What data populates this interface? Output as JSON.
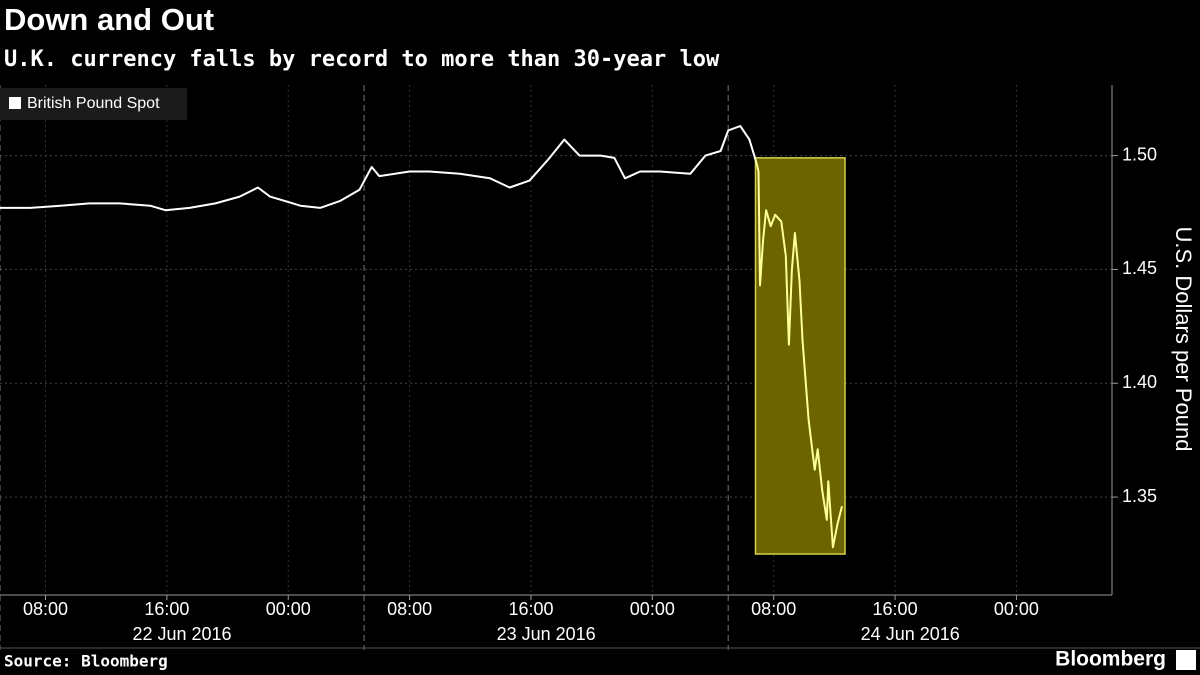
{
  "chart_data": {
    "type": "line",
    "title": "Down and Out",
    "subtitle": "U.K. currency falls by record to more than 30-year low",
    "ylabel": "U.S. Dollars per Pound",
    "source": "Source: Bloomberg",
    "brand": "Bloomberg",
    "x": [
      5.0,
      7.0,
      9.0,
      10.9,
      12.9,
      14.9,
      15.9,
      17.5,
      19.2,
      20.8,
      22.0,
      22.8,
      23.8,
      24.8,
      26.1,
      27.4,
      28.7,
      29.5,
      30.0,
      32.0,
      33.3,
      35.3,
      37.3,
      38.6,
      39.9,
      41.1,
      42.2,
      43.2,
      44.6,
      45.5,
      46.2,
      47.2,
      48.5,
      50.5,
      51.5,
      52.5,
      53.0,
      53.8,
      54.4,
      54.9,
      55.0,
      55.1,
      55.3,
      55.5,
      55.8,
      56.1,
      56.5,
      56.8,
      57.0,
      57.2,
      57.4,
      57.7,
      57.9,
      58.3,
      58.7,
      58.9,
      59.2,
      59.5,
      59.6,
      59.9,
      60.2,
      60.5
    ],
    "series": [
      {
        "name": "British Pound Spot",
        "color": "#ffffff",
        "highlight_color": "#ffff99",
        "values": [
          1.477,
          1.477,
          1.478,
          1.479,
          1.479,
          1.478,
          1.476,
          1.477,
          1.479,
          1.482,
          1.486,
          1.482,
          1.48,
          1.478,
          1.477,
          1.48,
          1.485,
          1.495,
          1.491,
          1.493,
          1.493,
          1.492,
          1.49,
          1.486,
          1.489,
          1.498,
          1.507,
          1.5,
          1.5,
          1.499,
          1.49,
          1.493,
          1.493,
          1.492,
          1.5,
          1.502,
          1.511,
          1.513,
          1.507,
          1.496,
          1.493,
          1.443,
          1.463,
          1.476,
          1.469,
          1.474,
          1.471,
          1.456,
          1.417,
          1.45,
          1.466,
          1.445,
          1.419,
          1.384,
          1.362,
          1.371,
          1.353,
          1.34,
          1.357,
          1.328,
          1.338,
          1.346
        ]
      }
    ],
    "highlight": {
      "x": [
        54.8,
        60.7
      ],
      "y": [
        1.325,
        1.499
      ],
      "fill": "#6b6400",
      "stroke": "#d8d24a"
    },
    "xlim": [
      5,
      78.3
    ],
    "ylim": [
      1.307,
      1.531
    ],
    "yticks": [
      {
        "value": 1.35,
        "label": "1.35"
      },
      {
        "value": 1.4,
        "label": "1.40"
      },
      {
        "value": 1.45,
        "label": "1.45"
      },
      {
        "value": 1.5,
        "label": "1.50"
      }
    ],
    "xticks": [
      {
        "value": 8,
        "label": "08:00"
      },
      {
        "value": 16,
        "label": "16:00"
      },
      {
        "value": 24,
        "label": "00:00"
      },
      {
        "value": 32,
        "label": "08:00"
      },
      {
        "value": 40,
        "label": "16:00"
      },
      {
        "value": 48,
        "label": "00:00"
      },
      {
        "value": 56,
        "label": "08:00"
      },
      {
        "value": 64,
        "label": "16:00"
      },
      {
        "value": 72,
        "label": "00:00"
      }
    ],
    "date_labels": [
      {
        "value": 17,
        "label": "22 Jun 2016"
      },
      {
        "value": 41,
        "label": "23 Jun 2016"
      },
      {
        "value": 65,
        "label": "24 Jun 2016"
      }
    ],
    "day_boundaries": [
      5,
      29,
      53
    ],
    "grid": true
  }
}
